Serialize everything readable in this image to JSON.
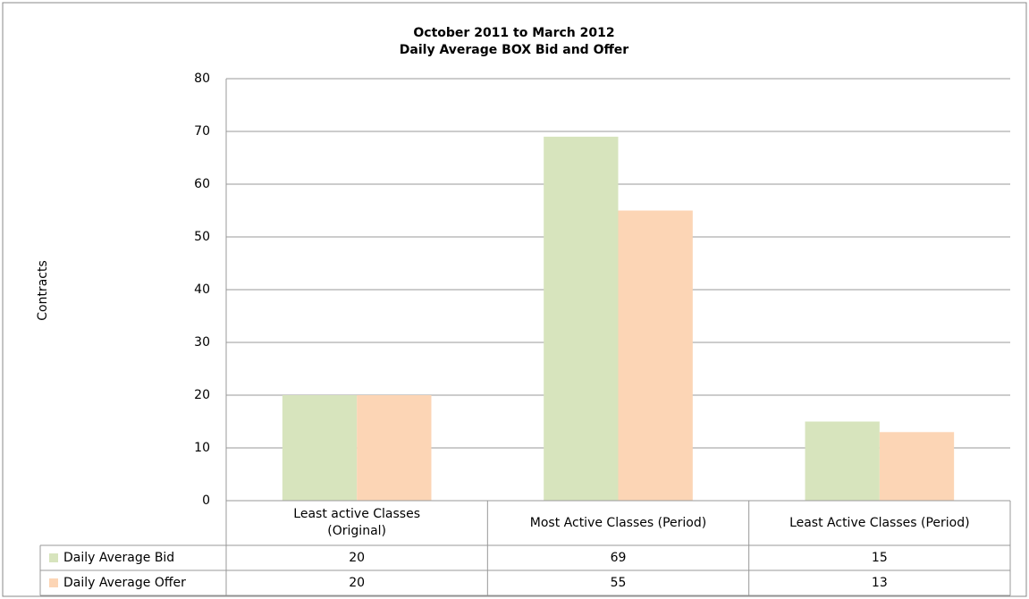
{
  "chart_data": {
    "type": "bar",
    "title": "October 2011 to March 2012",
    "subtitle": "Daily Average BOX Bid and Offer",
    "y_label": "Contracts",
    "categories": [
      "Least active Classes (Original)",
      "Most Active Classes (Period)",
      "Least Active Classes (Period)"
    ],
    "series": [
      {
        "name": "Daily Average Bid",
        "color": "#d7e4bd",
        "values": [
          20,
          69,
          15
        ]
      },
      {
        "name": "Daily Average Offer",
        "color": "#fcd5b5",
        "values": [
          20,
          55,
          13
        ]
      }
    ],
    "ylim": [
      0,
      80
    ],
    "yticks": [
      0,
      10,
      20,
      30,
      40,
      50,
      60,
      70,
      80
    ],
    "grid": true
  }
}
